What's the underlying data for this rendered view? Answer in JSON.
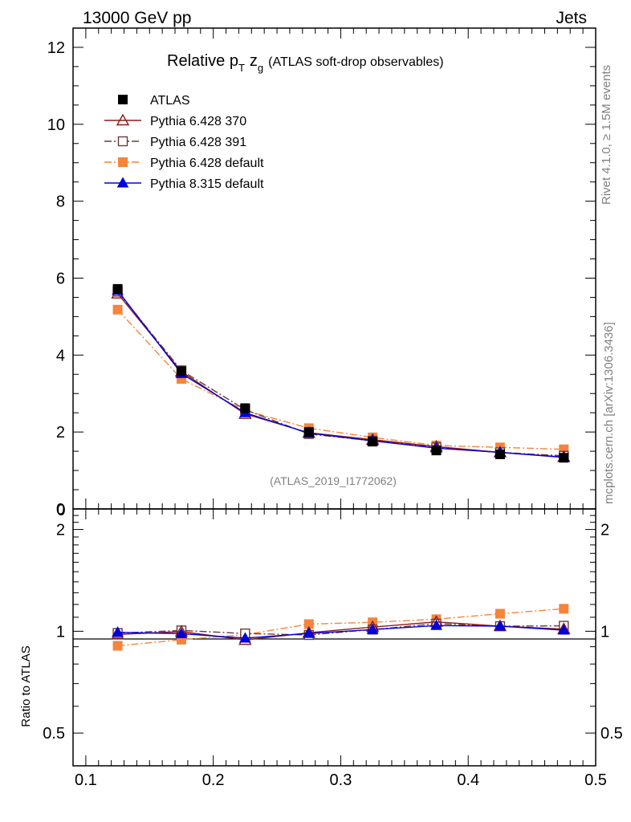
{
  "header": {
    "left": "13000 GeV pp",
    "right": "Jets",
    "title_main": "Relative p",
    "title_sub_T": "T",
    "title_z": "z",
    "title_sub_g": "g",
    "title_rest": "(ATLAS soft-drop observables)",
    "watermark": "(ATLAS_2019_I1772062)",
    "side_rivet": "Rivet 4.1.0, ≥ 1.5M events",
    "side_mcplots": "mcplots.cern.ch [arXiv:1306.3436]",
    "ratio_ylabel": "Ratio to ATLAS"
  },
  "chart_data": {
    "type": "line",
    "x": [
      0.125,
      0.175,
      0.225,
      0.275,
      0.325,
      0.375,
      0.425,
      0.475
    ],
    "xlim": [
      0.09,
      0.5
    ],
    "xticks": [
      "0.1",
      "0.2",
      "0.3",
      "0.4",
      "0.5"
    ],
    "main": {
      "ylim": [
        0,
        12.5
      ],
      "yticks": [
        "0",
        "2",
        "4",
        "6",
        "8",
        "10",
        "12"
      ]
    },
    "ratio": {
      "ylim": [
        0.4,
        2.3
      ],
      "yticks": [
        "0.5",
        "1",
        "2"
      ]
    },
    "series": [
      {
        "name": "ATLAS",
        "color": "#000000",
        "marker": "square",
        "dash": "none",
        "values": [
          5.72,
          3.58,
          2.62,
          2.0,
          1.75,
          1.52,
          1.42,
          1.33
        ]
      },
      {
        "name": "Pythia 6.428 370",
        "color": "#8b1a1a",
        "marker": "triangle-open",
        "dash": "solid",
        "values": [
          5.6,
          3.57,
          2.47,
          1.98,
          1.8,
          1.62,
          1.47,
          1.35
        ]
      },
      {
        "name": "Pythia 6.428 391",
        "color": "#6b3a3a",
        "marker": "square-open",
        "dash": "dashdot",
        "values": [
          5.65,
          3.6,
          2.58,
          1.95,
          1.77,
          1.6,
          1.47,
          1.38
        ]
      },
      {
        "name": "Pythia 6.428 default",
        "color": "#f5843c",
        "marker": "square",
        "dash": "dashdot",
        "values": [
          5.18,
          3.38,
          2.56,
          2.1,
          1.86,
          1.65,
          1.6,
          1.55
        ]
      },
      {
        "name": "Pythia 8.315 default",
        "color": "#0000dd",
        "marker": "triangle",
        "dash": "solid",
        "values": [
          5.68,
          3.52,
          2.5,
          1.97,
          1.77,
          1.58,
          1.47,
          1.34
        ]
      }
    ]
  }
}
